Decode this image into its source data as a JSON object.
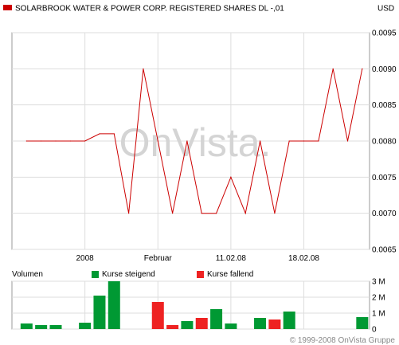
{
  "header": {
    "title": "SOLARBROOK WATER & POWER CORP. REGISTERED SHARES DL -,01",
    "currency": "USD"
  },
  "watermark": "OnVista.",
  "copyright": "© 1999-2008 OnVista Gruppe",
  "colors": {
    "price_line": "#cc0000",
    "title_marker": "#cc0000",
    "rising": "#009933",
    "falling": "#ee2222",
    "grid": "#dddddd",
    "axis_text": "#000000"
  },
  "chart_data": [
    {
      "type": "line",
      "name": "price",
      "x": [
        1,
        2,
        3,
        4,
        5,
        6,
        7,
        8,
        9,
        10,
        11,
        12,
        13,
        14,
        15,
        16,
        17,
        18,
        19,
        20,
        21,
        22,
        23,
        24
      ],
      "y": [
        0.008,
        0.008,
        0.008,
        0.008,
        0.008,
        0.0081,
        0.0081,
        0.007,
        0.009,
        0.008,
        0.007,
        0.008,
        0.007,
        0.007,
        0.0075,
        0.007,
        0.008,
        0.007,
        0.008,
        0.008,
        0.008,
        0.009,
        0.008,
        0.009
      ],
      "xlim": [
        0,
        24.5
      ],
      "ylim": [
        0.0065,
        0.0095
      ],
      "x_tick_labels": [
        {
          "x": 5,
          "label": "2008"
        },
        {
          "x": 10,
          "label": "Februar"
        },
        {
          "x": 15,
          "label": "11.02.08"
        },
        {
          "x": 20,
          "label": "18.02.08"
        }
      ],
      "y_ticks": [
        0.0065,
        0.007,
        0.0075,
        0.008,
        0.0085,
        0.009,
        0.0095
      ],
      "y_tick_labels": [
        "0.0065",
        "0.0070",
        "0.0075",
        "0.0080",
        "0.0085",
        "0.0090",
        "0.0095"
      ],
      "grid": true
    },
    {
      "type": "bar",
      "name": "volume",
      "title": "Volumen",
      "legend": [
        {
          "label": "Kurse steigend",
          "color": "#009933"
        },
        {
          "label": "Kurse fallend",
          "color": "#ee2222"
        }
      ],
      "x": [
        1,
        2,
        3,
        4,
        5,
        6,
        7,
        8,
        9,
        10,
        11,
        12,
        13,
        14,
        15,
        16,
        17,
        18,
        19,
        20,
        21,
        22,
        23,
        24
      ],
      "values": [
        0.35,
        0.25,
        0.25,
        0,
        0.4,
        2.1,
        3.0,
        0,
        0,
        1.7,
        0.25,
        0.5,
        0.7,
        1.25,
        0.35,
        0,
        0.7,
        0.6,
        1.1,
        0,
        0,
        0,
        0,
        0.75
      ],
      "direction": [
        "up",
        "up",
        "up",
        "",
        "up",
        "up",
        "up",
        "",
        "",
        "down",
        "down",
        "up",
        "down",
        "up",
        "up",
        "",
        "up",
        "down",
        "up",
        "",
        "",
        "",
        "",
        "up"
      ],
      "ylim": [
        0,
        3
      ],
      "y_tick_labels": [
        "0",
        "1 M",
        "2 M",
        "3 M"
      ],
      "grid": true
    }
  ]
}
